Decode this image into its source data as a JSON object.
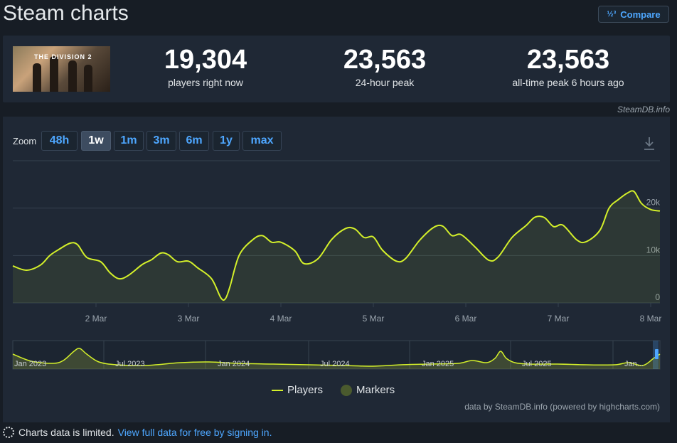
{
  "header": {
    "title": "Steam charts",
    "compare_label": "Compare",
    "compare_icon": "½³"
  },
  "stats": [
    {
      "value": "19,304",
      "label": "players right now"
    },
    {
      "value": "23,563",
      "label": "24-hour peak"
    },
    {
      "value": "23,563",
      "label": "all-time peak 6 hours ago"
    }
  ],
  "game": {
    "logo_text": "THE DIVISION 2"
  },
  "credit": "SteamDB.info",
  "zoom": {
    "label": "Zoom",
    "buttons": [
      "48h",
      "1w",
      "1m",
      "3m",
      "6m",
      "1y",
      "max"
    ],
    "active": "1w"
  },
  "colors": {
    "series": "#d4f02a",
    "accent": "#4ea7ff",
    "background": "#1f2835"
  },
  "chart_data": {
    "type": "line",
    "series_name": "Players",
    "x_ticks": [
      "2 Mar",
      "3 Mar",
      "4 Mar",
      "5 Mar",
      "6 Mar",
      "7 Mar",
      "8 Mar"
    ],
    "y_ticks": [
      "0",
      "10k",
      "20k"
    ],
    "ylim": [
      0,
      30000
    ],
    "xlim": [
      1.1,
      8.1
    ],
    "grid": true,
    "series": [
      {
        "name": "Players",
        "points": [
          [
            1.1,
            7800
          ],
          [
            1.25,
            6900
          ],
          [
            1.4,
            8000
          ],
          [
            1.5,
            10000
          ],
          [
            1.6,
            11300
          ],
          [
            1.72,
            12600
          ],
          [
            1.8,
            12300
          ],
          [
            1.9,
            9600
          ],
          [
            2.05,
            8700
          ],
          [
            2.15,
            6400
          ],
          [
            2.25,
            5100
          ],
          [
            2.35,
            5800
          ],
          [
            2.5,
            8100
          ],
          [
            2.6,
            9100
          ],
          [
            2.7,
            10500
          ],
          [
            2.78,
            10200
          ],
          [
            2.88,
            8700
          ],
          [
            3.0,
            8800
          ],
          [
            3.1,
            7400
          ],
          [
            3.25,
            5100
          ],
          [
            3.35,
            1100
          ],
          [
            3.4,
            900
          ],
          [
            3.45,
            3500
          ],
          [
            3.55,
            10100
          ],
          [
            3.7,
            13400
          ],
          [
            3.8,
            14200
          ],
          [
            3.9,
            12800
          ],
          [
            4.0,
            12800
          ],
          [
            4.15,
            11000
          ],
          [
            4.25,
            8300
          ],
          [
            4.4,
            9300
          ],
          [
            4.55,
            13400
          ],
          [
            4.7,
            15700
          ],
          [
            4.8,
            15600
          ],
          [
            4.9,
            13800
          ],
          [
            5.0,
            13900
          ],
          [
            5.1,
            11100
          ],
          [
            5.25,
            8800
          ],
          [
            5.35,
            9400
          ],
          [
            5.5,
            13200
          ],
          [
            5.65,
            15900
          ],
          [
            5.75,
            16200
          ],
          [
            5.85,
            14200
          ],
          [
            5.95,
            14400
          ],
          [
            6.1,
            11800
          ],
          [
            6.25,
            9000
          ],
          [
            6.35,
            9700
          ],
          [
            6.5,
            13800
          ],
          [
            6.65,
            16300
          ],
          [
            6.75,
            18100
          ],
          [
            6.85,
            18000
          ],
          [
            6.95,
            16100
          ],
          [
            7.05,
            16400
          ],
          [
            7.2,
            13300
          ],
          [
            7.3,
            12900
          ],
          [
            7.45,
            15300
          ],
          [
            7.55,
            20000
          ],
          [
            7.65,
            21800
          ],
          [
            7.75,
            23200
          ],
          [
            7.82,
            23500
          ],
          [
            7.9,
            21000
          ],
          [
            8.0,
            19700
          ],
          [
            8.1,
            19400
          ]
        ]
      }
    ],
    "navigator": {
      "x_ticks": [
        "Jan 2023",
        "Jul 2023",
        "Jan 2024",
        "Jul 2024",
        "Jan 2025",
        "Jul 2025",
        "Jan..."
      ]
    },
    "legend": [
      "Players",
      "Markers"
    ],
    "legend_placement": "bottom"
  },
  "powered_by": "data by SteamDB.info (powered by highcharts.com)",
  "footer": {
    "note": "Charts data is limited.",
    "link": "View full data for free by signing in."
  }
}
